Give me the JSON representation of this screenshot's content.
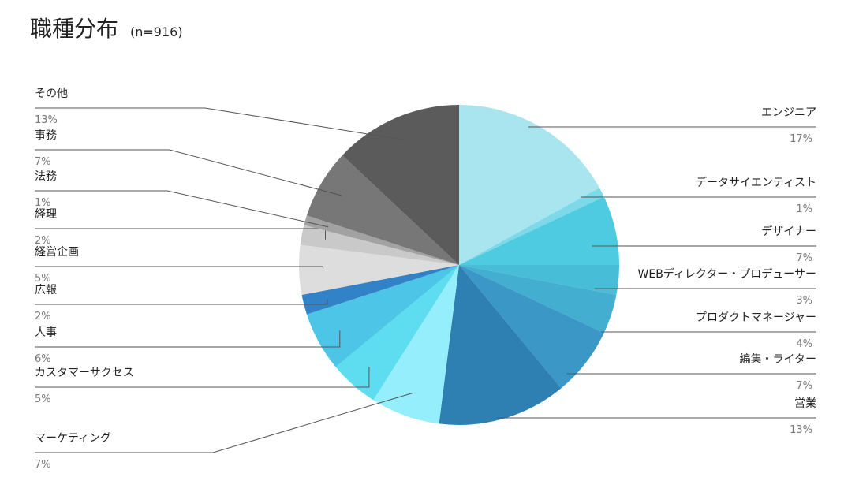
{
  "chart_data": {
    "type": "pie",
    "title": "職種分布",
    "subtitle": "(n=916)",
    "categories": [
      "エンジニア",
      "データサイエンティスト",
      "デザイナー",
      "WEBディレクター・プロデューサー",
      "プロダクトマネージャー",
      "編集・ライター",
      "営業",
      "マーケティング",
      "カスタマーサクセス",
      "人事",
      "広報",
      "経営企画",
      "経理",
      "法務",
      "事務",
      "その他"
    ],
    "values": [
      17,
      1,
      7,
      3,
      4,
      7,
      13,
      7,
      5,
      6,
      2,
      5,
      2,
      1,
      7,
      13
    ],
    "value_labels": [
      "17%",
      "1%",
      "7%",
      "3%",
      "4%",
      "7%",
      "13%",
      "7%",
      "5%",
      "6%",
      "2%",
      "5%",
      "2%",
      "1%",
      "7%",
      "13%"
    ],
    "colors": [
      "#a8e5ee",
      "#7dd8e8",
      "#4ecbe0",
      "#48bdd8",
      "#43aed0",
      "#3a97c6",
      "#2f80b2",
      "#95eefb",
      "#5edcf0",
      "#4cc5e6",
      "#3282c8",
      "#dddddd",
      "#c9c9c9",
      "#a2a2a2",
      "#777777",
      "#5b5b5b"
    ]
  }
}
